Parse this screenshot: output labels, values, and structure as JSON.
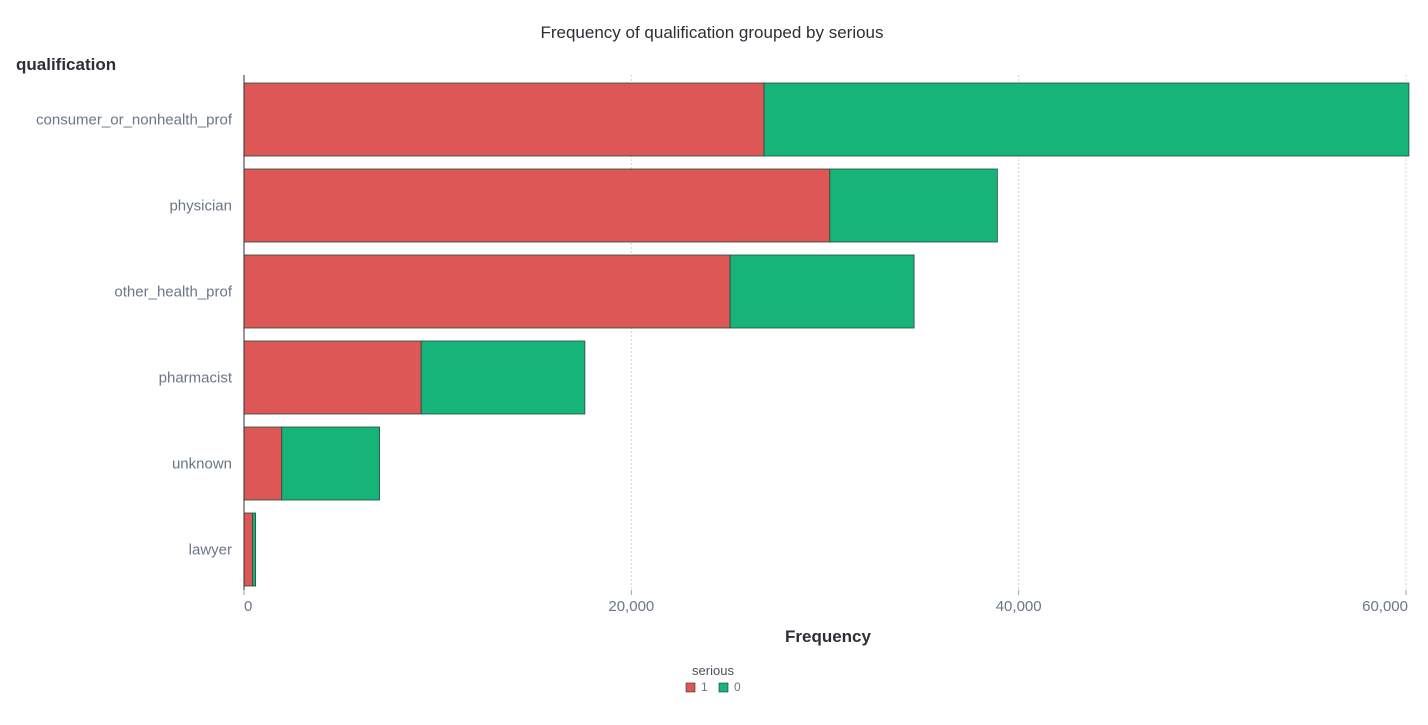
{
  "chart_data": {
    "type": "bar",
    "orientation": "horizontal",
    "stacked": true,
    "title": "Frequency of qualification grouped by serious",
    "ylabel": "qualification",
    "xlabel": "Frequency",
    "categories": [
      "consumer_or_nonhealth_prof",
      "physician",
      "other_health_prof",
      "pharmacist",
      "unknown",
      "lawyer"
    ],
    "series": [
      {
        "name": "1",
        "color": "#dd5757",
        "values": [
          26850,
          30250,
          25100,
          9150,
          1950,
          450
        ]
      },
      {
        "name": "0",
        "color": "#17b47a",
        "values": [
          33300,
          8650,
          9500,
          8450,
          5050,
          150
        ]
      }
    ],
    "xlim": [
      0,
      60000
    ],
    "xticks": [
      0,
      20000,
      40000,
      60000
    ],
    "xtick_labels": [
      "0",
      "20,000",
      "40,000",
      "60,000"
    ],
    "grid": true,
    "legend": {
      "title": "serious",
      "position": "bottom-center"
    }
  }
}
